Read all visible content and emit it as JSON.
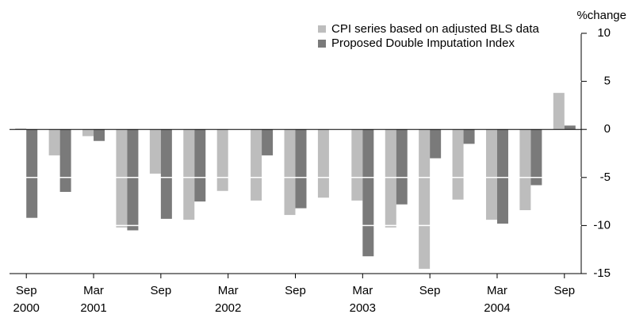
{
  "chart_data": {
    "type": "bar",
    "y_label": "%change",
    "categories": [
      "Sep",
      null,
      "Mar",
      null,
      "Sep",
      null,
      "Mar",
      null,
      "Sep",
      null,
      "Mar",
      null,
      "Sep",
      null,
      "Mar",
      null,
      "Sep"
    ],
    "years": [
      "2000",
      null,
      "2001",
      null,
      null,
      null,
      "2002",
      null,
      null,
      null,
      "2003",
      null,
      null,
      null,
      "2004",
      null,
      null
    ],
    "series": [
      {
        "name": "CPI series based on adjusted BLS data",
        "color": "#bdbdbd",
        "values": [
          0.1,
          -2.7,
          -0.7,
          -10.2,
          -4.6,
          -9.4,
          -6.4,
          -7.4,
          -8.9,
          -7.1,
          -7.4,
          -10.2,
          -14.5,
          -7.3,
          -9.4,
          -8.4,
          3.8
        ]
      },
      {
        "name": "Proposed Double Imputation Index",
        "color": "#7a7a7a",
        "values": [
          -9.2,
          -6.5,
          -1.2,
          -10.5,
          -9.3,
          -7.5,
          0,
          -2.7,
          -8.2,
          0,
          -13.2,
          -7.8,
          -3.0,
          -1.5,
          -9.8,
          -5.8,
          0.4
        ]
      }
    ],
    "ylim": [
      -15,
      10
    ],
    "yticks": [
      -15,
      -10,
      -5,
      0,
      5,
      10
    ],
    "grid": true
  }
}
